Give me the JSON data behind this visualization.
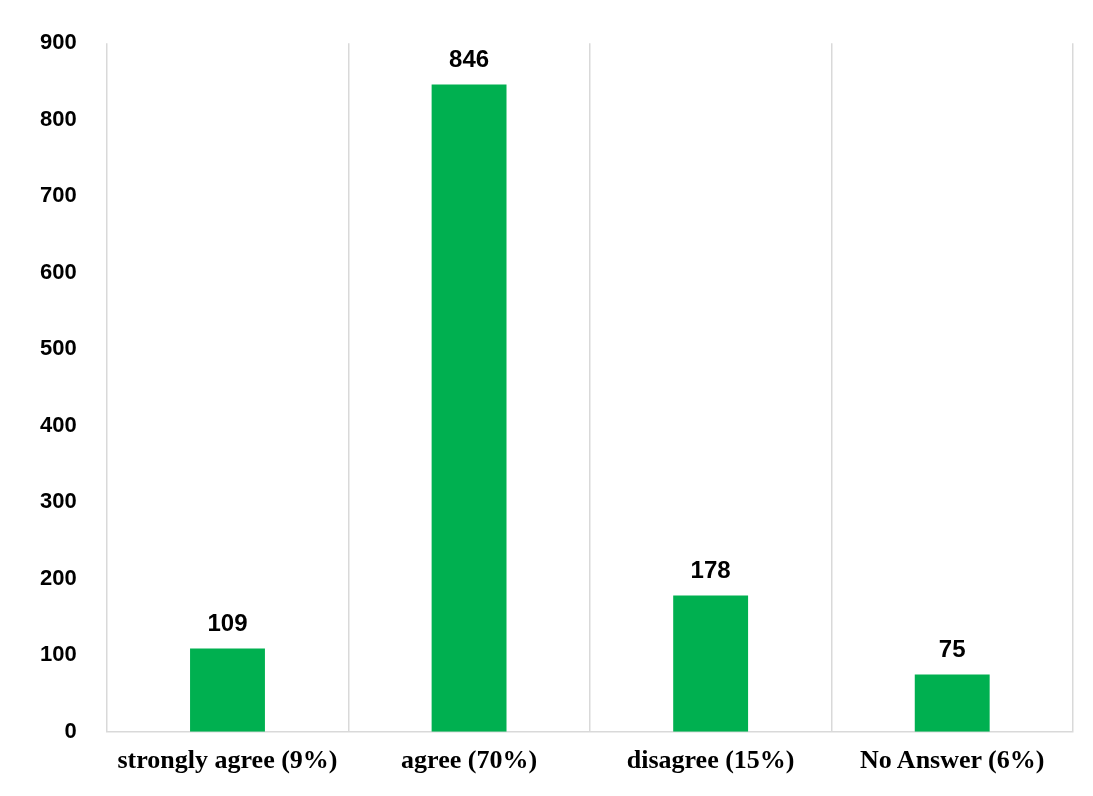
{
  "chart_data": {
    "type": "bar",
    "categories": [
      "strongly agree (9%)",
      "agree (70%)",
      "disagree (15%)",
      "No Answer (6%)"
    ],
    "values": [
      109,
      846,
      178,
      75
    ],
    "color": "#00b050",
    "ylim": [
      0,
      900
    ],
    "yticks": [
      0,
      100,
      200,
      300,
      400,
      500,
      600,
      700,
      800,
      900
    ],
    "grid": "x",
    "legend": false,
    "data_labels": true
  }
}
